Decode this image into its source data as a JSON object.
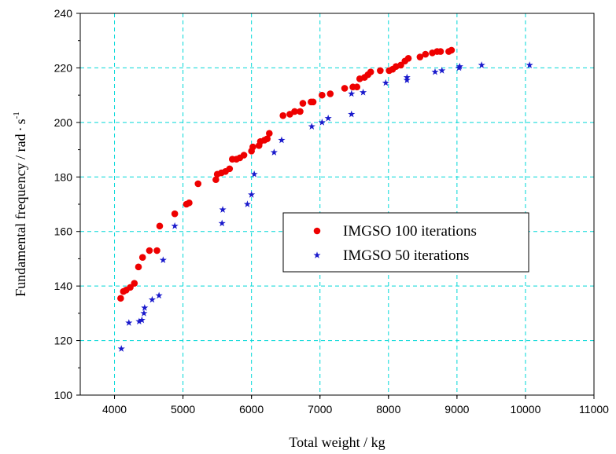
{
  "chart_data": {
    "type": "scatter",
    "title": "",
    "xlabel": "Total weight  /  kg",
    "ylabel_main": "Fundamental frequency  /  rad",
    "ylabel_unit_tail": "s",
    "ylabel_superscript": "-1",
    "xlim": [
      3500,
      11000
    ],
    "ylim": [
      100,
      240
    ],
    "x_ticks": [
      4000,
      5000,
      6000,
      7000,
      8000,
      9000,
      10000,
      11000
    ],
    "y_ticks": [
      100,
      120,
      140,
      160,
      180,
      200,
      220,
      240
    ],
    "grid": true,
    "grid_color": "#00d8d8",
    "legend_placement": "center-right",
    "series": [
      {
        "name": "IMGSO 100 iterations",
        "marker": "circle",
        "color": "#ee0000",
        "points": [
          [
            4090,
            135.5
          ],
          [
            4130,
            138
          ],
          [
            4170,
            138.5
          ],
          [
            4230,
            139.5
          ],
          [
            4290,
            141
          ],
          [
            4350,
            147
          ],
          [
            4410,
            150.5
          ],
          [
            4510,
            153
          ],
          [
            4620,
            153
          ],
          [
            4660,
            162
          ],
          [
            4880,
            166.5
          ],
          [
            5050,
            170
          ],
          [
            5090,
            170.5
          ],
          [
            5220,
            177.5
          ],
          [
            5480,
            179
          ],
          [
            5500,
            181
          ],
          [
            5560,
            181.5
          ],
          [
            5620,
            182
          ],
          [
            5680,
            183
          ],
          [
            5720,
            186.5
          ],
          [
            5780,
            186.5
          ],
          [
            5830,
            187
          ],
          [
            5890,
            188
          ],
          [
            6000,
            189.5
          ],
          [
            6020,
            191
          ],
          [
            6110,
            191.5
          ],
          [
            6130,
            193
          ],
          [
            6190,
            193.5
          ],
          [
            6230,
            194
          ],
          [
            6260,
            196
          ],
          [
            6460,
            202.5
          ],
          [
            6560,
            203
          ],
          [
            6630,
            204
          ],
          [
            6710,
            204
          ],
          [
            6750,
            207
          ],
          [
            6870,
            207.5
          ],
          [
            6900,
            207.5
          ],
          [
            7030,
            210
          ],
          [
            7150,
            210.5
          ],
          [
            7360,
            212.5
          ],
          [
            7480,
            213
          ],
          [
            7540,
            213
          ],
          [
            7580,
            216
          ],
          [
            7650,
            216.5
          ],
          [
            7700,
            217.5
          ],
          [
            7740,
            218.5
          ],
          [
            7880,
            219
          ],
          [
            8010,
            219
          ],
          [
            8060,
            219.5
          ],
          [
            8110,
            220.5
          ],
          [
            8180,
            221
          ],
          [
            8240,
            222.5
          ],
          [
            8290,
            223.5
          ],
          [
            8460,
            224
          ],
          [
            8540,
            225
          ],
          [
            8640,
            225.5
          ],
          [
            8710,
            226
          ],
          [
            8760,
            226
          ],
          [
            8880,
            226
          ],
          [
            8920,
            226.5
          ]
        ]
      },
      {
        "name": "IMGSO 50 iterations",
        "marker": "star",
        "color": "#1a1acc",
        "points": [
          [
            4100,
            117
          ],
          [
            4210,
            126.5
          ],
          [
            4360,
            127
          ],
          [
            4400,
            127.5
          ],
          [
            4430,
            130
          ],
          [
            4440,
            132
          ],
          [
            4550,
            135
          ],
          [
            4650,
            136.5
          ],
          [
            4710,
            149.5
          ],
          [
            4880,
            162
          ],
          [
            5580,
            168
          ],
          [
            5570,
            163
          ],
          [
            5940,
            170
          ],
          [
            6000,
            173.5
          ],
          [
            6040,
            181
          ],
          [
            6330,
            189
          ],
          [
            6440,
            193.5
          ],
          [
            6880,
            198.5
          ],
          [
            7030,
            200
          ],
          [
            7120,
            201.5
          ],
          [
            7460,
            203
          ],
          [
            7460,
            210.5
          ],
          [
            7630,
            211
          ],
          [
            7960,
            214.5
          ],
          [
            8270,
            215.5
          ],
          [
            8270,
            216.5
          ],
          [
            8680,
            218.5
          ],
          [
            8780,
            219
          ],
          [
            9030,
            220
          ],
          [
            9040,
            220.5
          ],
          [
            9360,
            221
          ],
          [
            10060,
            221
          ]
        ]
      }
    ]
  }
}
